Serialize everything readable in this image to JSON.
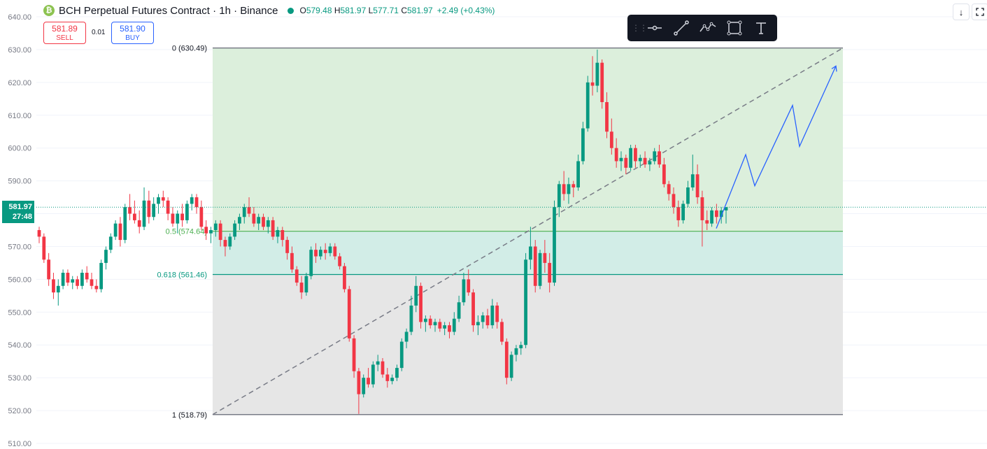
{
  "header": {
    "symbol_icon": "₿",
    "title": "BCH Perpetual Futures Contract · 1h · Binance",
    "ohlc": {
      "o_label": "O",
      "o": "579.48",
      "h_label": "H",
      "h": "581.97",
      "l_label": "L",
      "l": "577.71",
      "c_label": "C",
      "c": "581.97",
      "change": "+2.49 (+0.43%)"
    }
  },
  "trade": {
    "sell_price": "581.89",
    "sell_label": "SELL",
    "spread": "0.01",
    "buy_price": "581.90",
    "buy_label": "BUY"
  },
  "toolbar": {
    "items": [
      "grip-icon",
      "horizontal-line-icon",
      "trend-line-icon",
      "path-icon",
      "rectangle-icon",
      "text-icon"
    ]
  },
  "price_tag": {
    "price": "581.97",
    "countdown": "27:48"
  },
  "chart_data": {
    "type": "candlestick",
    "symbol": "BCH Perpetual Futures Contract",
    "interval": "1h",
    "exchange": "Binance",
    "ylim": [
      510,
      640
    ],
    "yticks": [
      "640.00",
      "630.00",
      "620.00",
      "610.00",
      "600.00",
      "590.00",
      "580.00",
      "570.00",
      "560.00",
      "550.00",
      "540.00",
      "530.00",
      "520.00",
      "510.00"
    ],
    "last_price": 581.97,
    "fibonacci": {
      "levels": [
        {
          "ratio": "0",
          "price": 630.49,
          "label": "0 (630.49)"
        },
        {
          "ratio": "0.5",
          "price": 574.64,
          "label": "0.5 (574.64)"
        },
        {
          "ratio": "0.618",
          "price": 561.46,
          "label": "0.618 (561.46)"
        },
        {
          "ratio": "1",
          "price": 518.79,
          "label": "1 (518.79)"
        }
      ],
      "colors": {
        "upper": "#dcefdc",
        "mid": "#d2ede7",
        "lower": "#e6e6e6",
        "line_mid": "#4caf50",
        "line_618": "#089981",
        "line_edge": "#787b86"
      }
    },
    "trendline": {
      "from": 518.79,
      "to": 630.49,
      "style": "dashed",
      "color": "#787b86"
    },
    "projection": {
      "color": "#2962ff",
      "prices": [
        575.5,
        598,
        588.5,
        613,
        600.5,
        625
      ]
    },
    "candles": [
      [
        575,
        576,
        571,
        573
      ],
      [
        573,
        574,
        565,
        566
      ],
      [
        566,
        568,
        558,
        560
      ],
      [
        560,
        562,
        554,
        556
      ],
      [
        556,
        560,
        552,
        558
      ],
      [
        558,
        563,
        557,
        562
      ],
      [
        562,
        563,
        558,
        559
      ],
      [
        559,
        561,
        557,
        560
      ],
      [
        560,
        561,
        557,
        558
      ],
      [
        558,
        563,
        557,
        562
      ],
      [
        562,
        564,
        559,
        560
      ],
      [
        560,
        562,
        557,
        558
      ],
      [
        558,
        560,
        556,
        557
      ],
      [
        557,
        566,
        556,
        565
      ],
      [
        565,
        570,
        563,
        569
      ],
      [
        569,
        574,
        568,
        573
      ],
      [
        573,
        578,
        572,
        577
      ],
      [
        577,
        579,
        570,
        572
      ],
      [
        572,
        583,
        571,
        582
      ],
      [
        582,
        586,
        578,
        580
      ],
      [
        580,
        584,
        577,
        578
      ],
      [
        578,
        581,
        574,
        576
      ],
      [
        576,
        588,
        575,
        584
      ],
      [
        584,
        587,
        577,
        579
      ],
      [
        579,
        585,
        578,
        583
      ],
      [
        583,
        586,
        580,
        585
      ],
      [
        585,
        587,
        582,
        584
      ],
      [
        584,
        585,
        578,
        580
      ],
      [
        580,
        582,
        576,
        577
      ],
      [
        577,
        581,
        574,
        580
      ],
      [
        580,
        583,
        576,
        578
      ],
      [
        578,
        584,
        577,
        583
      ],
      [
        583,
        586,
        581,
        585
      ],
      [
        585,
        586,
        580,
        582
      ],
      [
        582,
        584,
        575,
        576
      ],
      [
        576,
        578,
        572,
        574
      ],
      [
        574,
        576,
        571,
        575
      ],
      [
        575,
        578,
        573,
        577
      ],
      [
        577,
        578,
        570,
        572
      ],
      [
        572,
        573,
        567,
        570
      ],
      [
        570,
        574,
        569,
        573
      ],
      [
        573,
        578,
        572,
        577
      ],
      [
        577,
        580,
        575,
        579
      ],
      [
        579,
        583,
        577,
        582
      ],
      [
        582,
        585,
        579,
        580
      ],
      [
        580,
        582,
        576,
        577
      ],
      [
        577,
        580,
        575,
        579
      ],
      [
        579,
        580,
        575,
        576
      ],
      [
        576,
        579,
        574,
        578
      ],
      [
        578,
        579,
        572,
        573
      ],
      [
        573,
        576,
        571,
        575
      ],
      [
        575,
        576,
        570,
        572
      ],
      [
        572,
        573,
        566,
        568
      ],
      [
        568,
        570,
        562,
        563
      ],
      [
        563,
        564,
        558,
        559
      ],
      [
        559,
        561,
        554,
        556
      ],
      [
        556,
        562,
        555,
        561
      ],
      [
        561,
        570,
        560,
        569
      ],
      [
        569,
        571,
        565,
        567
      ],
      [
        567,
        570,
        566,
        569
      ],
      [
        569,
        571,
        566,
        568
      ],
      [
        568,
        571,
        567,
        570
      ],
      [
        570,
        571,
        566,
        567
      ],
      [
        567,
        568,
        563,
        564
      ],
      [
        564,
        565,
        556,
        557
      ],
      [
        557,
        558,
        541,
        542
      ],
      [
        542,
        543,
        530,
        532
      ],
      [
        532,
        533,
        519,
        525
      ],
      [
        525,
        531,
        524,
        530
      ],
      [
        530,
        533,
        527,
        528
      ],
      [
        528,
        535,
        527,
        534
      ],
      [
        534,
        537,
        532,
        535
      ],
      [
        535,
        536,
        530,
        531
      ],
      [
        531,
        533,
        527,
        529
      ],
      [
        529,
        531,
        528,
        530
      ],
      [
        530,
        534,
        529,
        533
      ],
      [
        533,
        542,
        532,
        541
      ],
      [
        541,
        545,
        539,
        544
      ],
      [
        544,
        555,
        543,
        552
      ],
      [
        552,
        561,
        550,
        558
      ],
      [
        558,
        559,
        545,
        547
      ],
      [
        547,
        549,
        544,
        548
      ],
      [
        548,
        549,
        545,
        546
      ],
      [
        546,
        548,
        544,
        547
      ],
      [
        547,
        548,
        544,
        545
      ],
      [
        545,
        547,
        543,
        546
      ],
      [
        546,
        547,
        542,
        544
      ],
      [
        544,
        550,
        543,
        548
      ],
      [
        548,
        555,
        547,
        553
      ],
      [
        553,
        562,
        552,
        560
      ],
      [
        560,
        563,
        555,
        556
      ],
      [
        556,
        557,
        544,
        546
      ],
      [
        546,
        549,
        543,
        547
      ],
      [
        547,
        550,
        545,
        549
      ],
      [
        549,
        551,
        545,
        546
      ],
      [
        546,
        554,
        545,
        552
      ],
      [
        552,
        553,
        545,
        547
      ],
      [
        547,
        548,
        540,
        541
      ],
      [
        541,
        542,
        528,
        530
      ],
      [
        530,
        538,
        529,
        537
      ],
      [
        537,
        540,
        535,
        539
      ],
      [
        539,
        541,
        537,
        540
      ],
      [
        540,
        568,
        539,
        566
      ],
      [
        566,
        576,
        563,
        570
      ],
      [
        570,
        572,
        556,
        558
      ],
      [
        558,
        569,
        557,
        568
      ],
      [
        568,
        572,
        562,
        565
      ],
      [
        565,
        568,
        556,
        559
      ],
      [
        559,
        584,
        558,
        582
      ],
      [
        582,
        590,
        579,
        589
      ],
      [
        589,
        593,
        584,
        586
      ],
      [
        586,
        591,
        583,
        589
      ],
      [
        589,
        590,
        585,
        588
      ],
      [
        588,
        598,
        587,
        596
      ],
      [
        596,
        608,
        595,
        606
      ],
      [
        606,
        622,
        605,
        620
      ],
      [
        620,
        628,
        616,
        619
      ],
      [
        619,
        630,
        617,
        626
      ],
      [
        626,
        627,
        612,
        614
      ],
      [
        614,
        617,
        603,
        605
      ],
      [
        605,
        609,
        598,
        600
      ],
      [
        600,
        603,
        594,
        596
      ],
      [
        596,
        599,
        593,
        597
      ],
      [
        597,
        598,
        592,
        594
      ],
      [
        594,
        601,
        593,
        600
      ],
      [
        600,
        601,
        594,
        596
      ],
      [
        596,
        598,
        594,
        597
      ],
      [
        597,
        599,
        594,
        595
      ],
      [
        595,
        597,
        593,
        596
      ],
      [
        596,
        600,
        595,
        599
      ],
      [
        599,
        601,
        594,
        595
      ],
      [
        595,
        597,
        588,
        589
      ],
      [
        589,
        590,
        584,
        586
      ],
      [
        586,
        588,
        580,
        582
      ],
      [
        582,
        584,
        576,
        578
      ],
      [
        578,
        584,
        577,
        583
      ],
      [
        583,
        590,
        582,
        588
      ],
      [
        588,
        598,
        587,
        592
      ],
      [
        592,
        595,
        583,
        585
      ],
      [
        585,
        587,
        570,
        578
      ],
      [
        578,
        581,
        575,
        577
      ],
      [
        577,
        582,
        576,
        581
      ],
      [
        581,
        583,
        577,
        579
      ],
      [
        579,
        582,
        577,
        581
      ],
      [
        581,
        582,
        577,
        582
      ]
    ]
  }
}
